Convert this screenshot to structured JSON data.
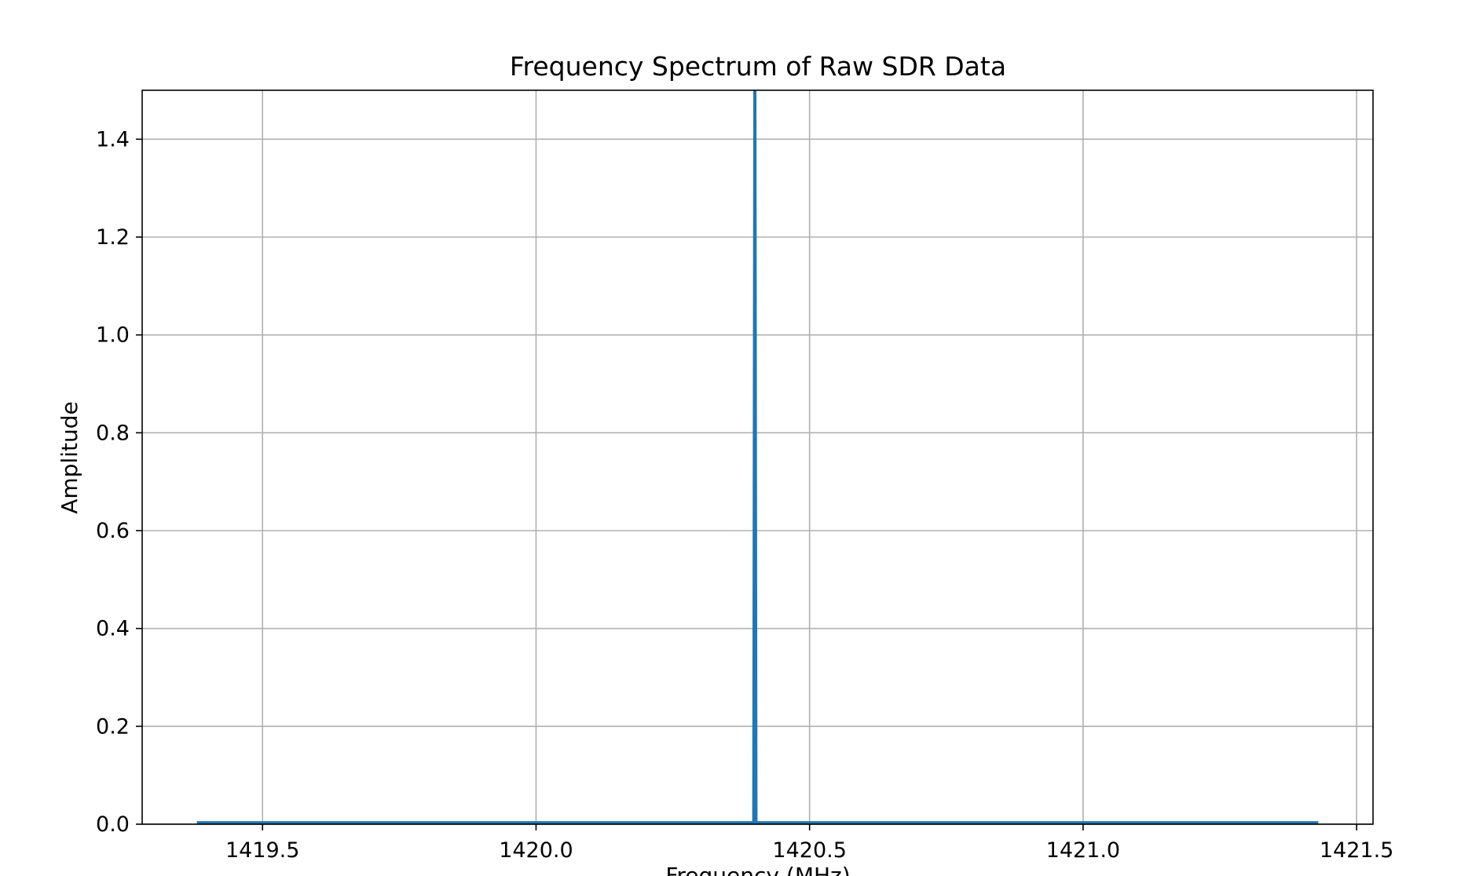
{
  "chart_data": {
    "type": "line",
    "title": "Frequency Spectrum of Raw SDR Data",
    "xlabel": "Frequency (MHz)",
    "ylabel": "Amplitude",
    "xlim": [
      1419.28,
      1421.53
    ],
    "ylim": [
      0.0,
      1.5
    ],
    "x_ticks": [
      1419.5,
      1420.0,
      1420.5,
      1421.0,
      1421.5
    ],
    "x_tick_labels": [
      "1419.5",
      "1420.0",
      "1420.5",
      "1421.0",
      "1421.5"
    ],
    "y_ticks": [
      0.0,
      0.2,
      0.4,
      0.6,
      0.8,
      1.0,
      1.2,
      1.4
    ],
    "y_tick_labels": [
      "0.0",
      "0.2",
      "0.4",
      "0.6",
      "0.8",
      "1.0",
      "1.2",
      "1.4"
    ],
    "grid": true,
    "legend": "none",
    "series": [
      {
        "color": "#1f77b4",
        "x": [
          1419.38,
          1419.5,
          1419.7,
          1419.9,
          1420.1,
          1420.3,
          1420.398,
          1420.4,
          1420.402,
          1420.5,
          1420.7,
          1420.9,
          1421.1,
          1421.3,
          1421.43
        ],
        "y": [
          0.003,
          0.003,
          0.003,
          0.003,
          0.003,
          0.003,
          0.003,
          1.5,
          0.003,
          0.003,
          0.003,
          0.003,
          0.003,
          0.003,
          0.003
        ]
      }
    ]
  }
}
